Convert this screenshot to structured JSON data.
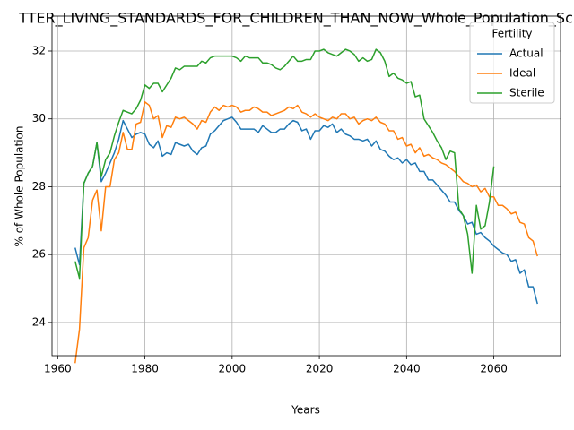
{
  "chart_data": {
    "type": "line",
    "title": "TTER_LIVING_STANDARDS_FOR_CHILDREN_THAN_NOW_Whole_Population_Sc",
    "xlabel": "Years",
    "ylabel": "% of Whole Population",
    "legend_title": "Fertility",
    "legend": "upper right",
    "grid": true,
    "xlim": [
      1958.7,
      2075.3
    ],
    "ylim": [
      23.02,
      33.03
    ],
    "xticks": [
      1960,
      1980,
      2000,
      2020,
      2040,
      2060
    ],
    "yticks": [
      24,
      26,
      28,
      30,
      32
    ],
    "x": [
      1964,
      1965,
      1966,
      1967,
      1968,
      1969,
      1970,
      1971,
      1972,
      1973,
      1974,
      1975,
      1976,
      1977,
      1978,
      1979,
      1980,
      1981,
      1982,
      1983,
      1984,
      1985,
      1986,
      1987,
      1988,
      1989,
      1990,
      1991,
      1992,
      1993,
      1994,
      1995,
      1996,
      1997,
      1998,
      1999,
      2000,
      2001,
      2002,
      2003,
      2004,
      2005,
      2006,
      2007,
      2008,
      2009,
      2010,
      2011,
      2012,
      2013,
      2014,
      2015,
      2016,
      2017,
      2018,
      2019,
      2020,
      2021,
      2022,
      2023,
      2024,
      2025,
      2026,
      2027,
      2028,
      2029,
      2030,
      2031,
      2032,
      2033,
      2034,
      2035,
      2036,
      2037,
      2038,
      2039,
      2040,
      2041,
      2042,
      2043,
      2044,
      2045,
      2046,
      2047,
      2048,
      2049,
      2050,
      2051,
      2052,
      2053,
      2054,
      2055,
      2056,
      2057,
      2058,
      2059,
      2060,
      2061,
      2062,
      2063,
      2064,
      2065,
      2066,
      2067,
      2068,
      2069,
      2070
    ],
    "series": [
      {
        "name": "Actual",
        "color": "#1f77b4",
        "values": [
          26.2,
          25.7,
          28.1,
          28.4,
          28.6,
          29.3,
          28.15,
          28.4,
          28.7,
          29.0,
          29.4,
          29.95,
          29.7,
          29.45,
          29.55,
          29.6,
          29.55,
          29.25,
          29.15,
          29.35,
          28.9,
          29.0,
          28.95,
          29.3,
          29.25,
          29.2,
          29.25,
          29.05,
          28.95,
          29.15,
          29.2,
          29.55,
          29.65,
          29.8,
          29.95,
          30.0,
          30.05,
          29.9,
          29.7,
          29.7,
          29.7,
          29.7,
          29.6,
          29.8,
          29.7,
          29.6,
          29.6,
          29.7,
          29.7,
          29.85,
          29.95,
          29.9,
          29.65,
          29.7,
          29.4,
          29.65,
          29.65,
          29.8,
          29.75,
          29.85,
          29.6,
          29.7,
          29.55,
          29.5,
          29.4,
          29.4,
          29.35,
          29.4,
          29.2,
          29.35,
          29.1,
          29.05,
          28.9,
          28.8,
          28.85,
          28.7,
          28.8,
          28.65,
          28.7,
          28.45,
          28.45,
          28.2,
          28.2,
          28.05,
          27.9,
          27.75,
          27.55,
          27.55,
          27.3,
          27.15,
          26.9,
          26.95,
          26.6,
          26.65,
          26.5,
          26.4,
          26.25,
          26.15,
          26.05,
          26.0,
          25.8,
          25.85,
          25.45,
          25.55,
          25.05,
          25.05,
          24.55
        ]
      },
      {
        "name": "Ideal",
        "color": "#ff7f0e",
        "values": [
          22.8,
          23.8,
          26.2,
          26.5,
          27.6,
          27.9,
          26.7,
          28.0,
          28.0,
          28.8,
          29.0,
          29.6,
          29.1,
          29.1,
          29.85,
          29.9,
          30.5,
          30.4,
          30.0,
          30.1,
          29.45,
          29.8,
          29.75,
          30.05,
          30.0,
          30.05,
          29.95,
          29.85,
          29.7,
          29.95,
          29.9,
          30.2,
          30.35,
          30.25,
          30.4,
          30.35,
          30.4,
          30.35,
          30.2,
          30.25,
          30.25,
          30.35,
          30.3,
          30.2,
          30.2,
          30.1,
          30.15,
          30.2,
          30.25,
          30.35,
          30.3,
          30.4,
          30.2,
          30.15,
          30.05,
          30.15,
          30.05,
          30.0,
          29.95,
          30.05,
          30.0,
          30.15,
          30.15,
          30.0,
          30.05,
          29.85,
          29.95,
          30.0,
          29.95,
          30.05,
          29.9,
          29.85,
          29.65,
          29.65,
          29.4,
          29.45,
          29.2,
          29.25,
          29.0,
          29.15,
          28.9,
          28.95,
          28.85,
          28.8,
          28.7,
          28.65,
          28.55,
          28.45,
          28.3,
          28.15,
          28.1,
          28.0,
          28.05,
          27.85,
          27.95,
          27.7,
          27.7,
          27.45,
          27.45,
          27.35,
          27.2,
          27.25,
          26.95,
          26.9,
          26.5,
          26.4,
          25.95
        ]
      },
      {
        "name": "Sterile",
        "color": "#2ca02c",
        "values": [
          25.8,
          25.3,
          28.1,
          28.4,
          28.6,
          29.3,
          28.3,
          28.8,
          29.0,
          29.5,
          29.9,
          30.25,
          30.2,
          30.15,
          30.3,
          30.55,
          31.0,
          30.9,
          31.05,
          31.05,
          30.8,
          31.0,
          31.2,
          31.5,
          31.45,
          31.55,
          31.55,
          31.55,
          31.55,
          31.7,
          31.65,
          31.8,
          31.85,
          31.85,
          31.85,
          31.85,
          31.85,
          31.8,
          31.7,
          31.85,
          31.8,
          31.8,
          31.8,
          31.65,
          31.65,
          31.6,
          31.5,
          31.45,
          31.55,
          31.7,
          31.85,
          31.7,
          31.7,
          31.75,
          31.75,
          32.0,
          32.0,
          32.05,
          31.95,
          31.9,
          31.85,
          31.95,
          32.05,
          32.0,
          31.9,
          31.7,
          31.8,
          31.7,
          31.75,
          32.05,
          31.95,
          31.7,
          31.25,
          31.35,
          31.2,
          31.15,
          31.05,
          31.1,
          30.65,
          30.7,
          30.0,
          29.8,
          29.6,
          29.35,
          29.15,
          28.8,
          29.05,
          29.0,
          27.35,
          27.15,
          26.6,
          25.45,
          27.45,
          26.75,
          26.85,
          27.55,
          28.6,
          null,
          null,
          null,
          null,
          null,
          null,
          null,
          null,
          null,
          null
        ]
      }
    ]
  }
}
